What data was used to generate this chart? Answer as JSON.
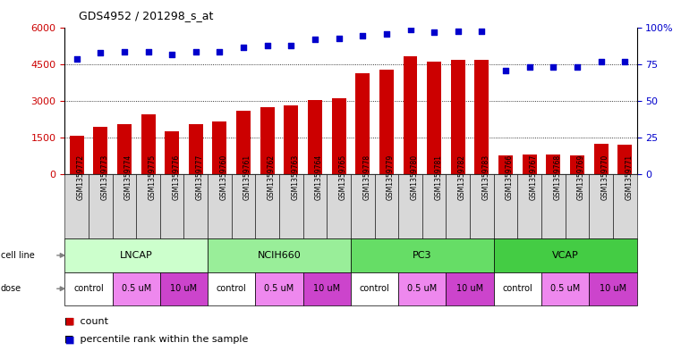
{
  "title": "GDS4952 / 201298_s_at",
  "samples": [
    "GSM1359772",
    "GSM1359773",
    "GSM1359774",
    "GSM1359775",
    "GSM1359776",
    "GSM1359777",
    "GSM1359760",
    "GSM1359761",
    "GSM1359762",
    "GSM1359763",
    "GSM1359764",
    "GSM1359765",
    "GSM1359778",
    "GSM1359779",
    "GSM1359780",
    "GSM1359781",
    "GSM1359782",
    "GSM1359783",
    "GSM1359766",
    "GSM1359767",
    "GSM1359768",
    "GSM1359769",
    "GSM1359770",
    "GSM1359771"
  ],
  "counts": [
    1550,
    1950,
    2050,
    2450,
    1750,
    2050,
    2150,
    2600,
    2750,
    2800,
    3050,
    3100,
    4150,
    4300,
    4850,
    4600,
    4700,
    4700,
    750,
    800,
    800,
    750,
    1250,
    1200
  ],
  "percentiles": [
    79,
    83,
    84,
    84,
    82,
    84,
    84,
    87,
    88,
    88,
    92,
    93,
    95,
    96,
    99,
    97,
    98,
    98,
    71,
    73,
    73,
    73,
    77,
    77
  ],
  "bar_color": "#cc0000",
  "dot_color": "#0000cc",
  "ylim_left": [
    0,
    6000
  ],
  "yticks_left": [
    0,
    1500,
    3000,
    4500,
    6000
  ],
  "ylim_right": [
    0,
    100
  ],
  "yticks_right": [
    0,
    25,
    50,
    75,
    100
  ],
  "cell_lines": [
    {
      "name": "LNCAP",
      "start": 0,
      "end": 6,
      "color": "#ccffcc"
    },
    {
      "name": "NCIH660",
      "start": 6,
      "end": 12,
      "color": "#99ee99"
    },
    {
      "name": "PC3",
      "start": 12,
      "end": 18,
      "color": "#66dd66"
    },
    {
      "name": "VCAP",
      "start": 18,
      "end": 24,
      "color": "#44cc44"
    }
  ],
  "doses": [
    {
      "name": "control",
      "start": 0,
      "end": 2,
      "color": "#ffffff"
    },
    {
      "name": "0.5 uM",
      "start": 2,
      "end": 4,
      "color": "#ee88ee"
    },
    {
      "name": "10 uM",
      "start": 4,
      "end": 6,
      "color": "#cc44cc"
    },
    {
      "name": "control",
      "start": 6,
      "end": 8,
      "color": "#ffffff"
    },
    {
      "name": "0.5 uM",
      "start": 8,
      "end": 10,
      "color": "#ee88ee"
    },
    {
      "name": "10 uM",
      "start": 10,
      "end": 12,
      "color": "#cc44cc"
    },
    {
      "name": "control",
      "start": 12,
      "end": 14,
      "color": "#ffffff"
    },
    {
      "name": "0.5 uM",
      "start": 14,
      "end": 16,
      "color": "#ee88ee"
    },
    {
      "name": "10 uM",
      "start": 16,
      "end": 18,
      "color": "#cc44cc"
    },
    {
      "name": "control",
      "start": 18,
      "end": 20,
      "color": "#ffffff"
    },
    {
      "name": "0.5 uM",
      "start": 20,
      "end": 22,
      "color": "#ee88ee"
    },
    {
      "name": "10 uM",
      "start": 22,
      "end": 24,
      "color": "#cc44cc"
    }
  ],
  "tick_color_left": "#cc0000",
  "tick_color_right": "#0000cc",
  "xtick_bg": "#d8d8d8",
  "grid_color": "#000000"
}
